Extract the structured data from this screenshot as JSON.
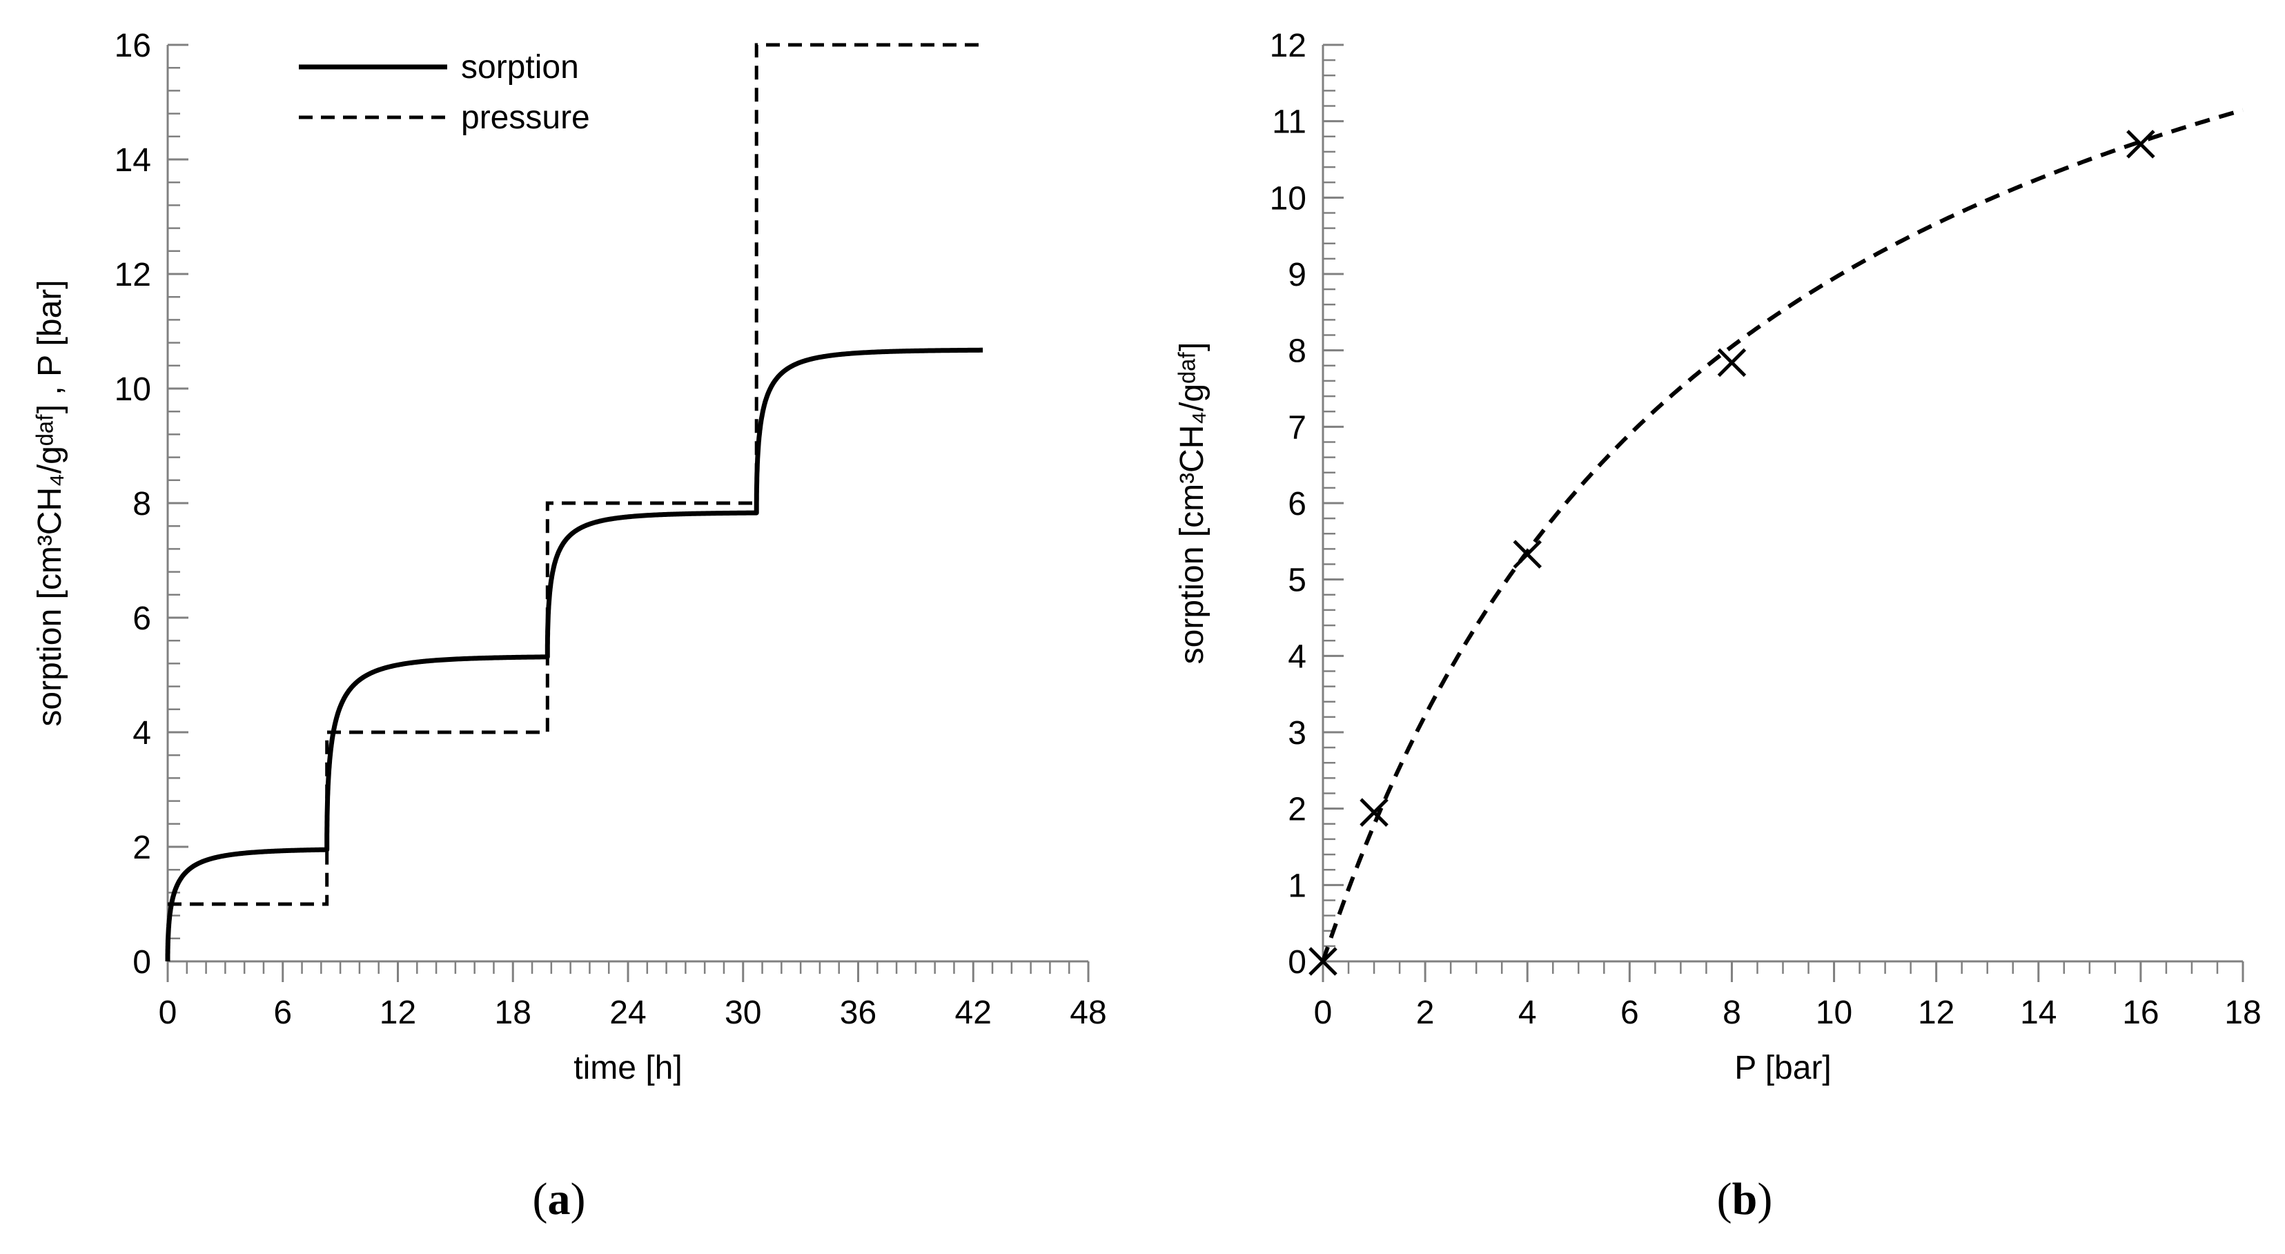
{
  "chart_data": [
    {
      "type": "line",
      "caption_open": "(",
      "caption_letter": "a",
      "caption_close": ")",
      "xlabel": "time [h]",
      "ylabel": "sorption [cm³CH₄/gᵈᵃᶠ] , P [bar]",
      "xlim": [
        0,
        48
      ],
      "ylim": [
        0,
        16
      ],
      "xticks": [
        0,
        6,
        12,
        18,
        24,
        30,
        36,
        42,
        48
      ],
      "yticks": [
        0,
        2,
        4,
        6,
        8,
        10,
        12,
        14,
        16
      ],
      "xticks_minor_step": 1,
      "yticks_minor_step": 0.4,
      "legend_position": "top-left",
      "series": [
        {
          "name": "sorption",
          "style": "solid",
          "steps": [
            {
              "t0": 0.0,
              "t1": 8.3,
              "v0": 0.0,
              "v1": 1.97,
              "tau": 1.0
            },
            {
              "t0": 8.3,
              "t1": 19.8,
              "v0": 1.97,
              "v1": 5.33,
              "tau": 1.0
            },
            {
              "t0": 19.8,
              "t1": 30.7,
              "v0": 5.33,
              "v1": 7.84,
              "tau": 0.9
            },
            {
              "t0": 30.7,
              "t1": 42.5,
              "v0": 7.84,
              "v1": 10.68,
              "tau": 0.9
            }
          ]
        },
        {
          "name": "pressure",
          "style": "dashed",
          "x": [
            0,
            8.3,
            8.3,
            19.8,
            19.8,
            30.7,
            30.7,
            42.5
          ],
          "y": [
            1,
            1,
            4,
            4,
            8,
            8,
            16,
            16
          ]
        }
      ]
    },
    {
      "type": "scatter",
      "caption_open": "(",
      "caption_letter": "b",
      "caption_close": ")",
      "xlabel": "P [bar]",
      "ylabel": "sorption [cm³CH₄/gᵈᵃᶠ]",
      "xlim": [
        0,
        18
      ],
      "ylim": [
        0,
        12
      ],
      "xticks": [
        0,
        2,
        4,
        6,
        8,
        10,
        12,
        14,
        16,
        18
      ],
      "yticks": [
        0,
        1,
        2,
        3,
        4,
        5,
        6,
        7,
        8,
        9,
        10,
        11,
        12
      ],
      "xticks_minor_step": 0.5,
      "yticks_minor_step": 0.2,
      "points": [
        {
          "x": 0,
          "y": 0
        },
        {
          "x": 1,
          "y": 1.95
        },
        {
          "x": 4,
          "y": 5.33
        },
        {
          "x": 8,
          "y": 7.84
        },
        {
          "x": 16,
          "y": 10.7
        }
      ],
      "fit": {
        "type": "langmuir",
        "style": "dashed",
        "vmax": 16.1,
        "b": 0.125
      }
    }
  ]
}
